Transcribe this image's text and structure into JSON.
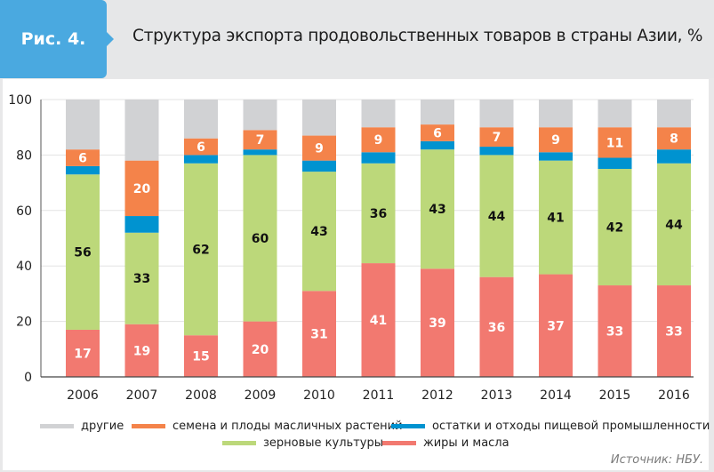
{
  "header": {
    "figure_label": "Рис. 4.",
    "title": "Структура экспорта продовольственных товаров в страны Азии, %"
  },
  "source": "Источник: НБУ.",
  "colors": {
    "other": "#d1d2d4",
    "oilseeds": "#f4834a",
    "residues": "#0093d0",
    "cereals": "#bcd87a",
    "fats": "#f27970",
    "badge": "#4aa9e0"
  },
  "chart_data": {
    "type": "bar",
    "stacked": true,
    "title": "Структура экспорта продовольственных товаров в страны Азии, %",
    "xlabel": "",
    "ylabel": "",
    "ylim": [
      0,
      100
    ],
    "yticks": [
      0,
      20,
      40,
      60,
      80,
      100
    ],
    "grid": true,
    "legend_position": "bottom",
    "categories": [
      "2006",
      "2007",
      "2008",
      "2009",
      "2010",
      "2011",
      "2012",
      "2013",
      "2014",
      "2015",
      "2016"
    ],
    "series": [
      {
        "key": "fats",
        "name": "жиры и масла",
        "values": [
          17,
          19,
          15,
          20,
          31,
          41,
          39,
          36,
          37,
          33,
          33
        ],
        "labeled": true
      },
      {
        "key": "cereals",
        "name": "зерновые культуры",
        "values": [
          56,
          33,
          62,
          60,
          43,
          36,
          43,
          44,
          41,
          42,
          44
        ],
        "labeled": true
      },
      {
        "key": "residues",
        "name": "остатки и отходы пищевой промышленности",
        "values": [
          3,
          6,
          3,
          2,
          4,
          4,
          3,
          3,
          3,
          4,
          5
        ],
        "labeled": false
      },
      {
        "key": "oilseeds",
        "name": "семена и плоды масличных растений",
        "values": [
          6,
          20,
          6,
          7,
          9,
          9,
          6,
          7,
          9,
          11,
          8
        ],
        "labeled": true
      },
      {
        "key": "other",
        "name": "другие",
        "values": [
          18,
          22,
          14,
          11,
          13,
          10,
          9,
          10,
          10,
          10,
          10
        ],
        "labeled": false
      }
    ],
    "legend": [
      {
        "key": "other",
        "label": "другие"
      },
      {
        "key": "oilseeds",
        "label": "семена и плоды масличных растений"
      },
      {
        "key": "residues",
        "label": "остатки и отходы пищевой промышленности"
      },
      {
        "key": "cereals",
        "label": "зерновые культуры"
      },
      {
        "key": "fats",
        "label": "жиры и масла"
      }
    ]
  }
}
